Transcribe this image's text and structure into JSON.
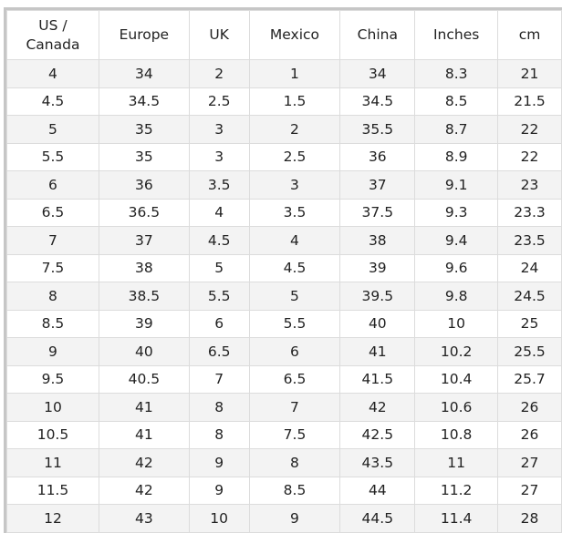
{
  "headers": [
    "US / Canada",
    "Europe",
    "UK",
    "Mexico",
    "China",
    "Inches",
    "cm"
  ],
  "rows": [
    [
      "4",
      "34",
      "2",
      "1",
      "34",
      "8.3",
      "21"
    ],
    [
      "4.5",
      "34.5",
      "2.5",
      "1.5",
      "34.5",
      "8.5",
      "21.5"
    ],
    [
      "5",
      "35",
      "3",
      "2",
      "35.5",
      "8.7",
      "22"
    ],
    [
      "5.5",
      "35",
      "3",
      "2.5",
      "36",
      "8.9",
      "22"
    ],
    [
      "6",
      "36",
      "3.5",
      "3",
      "37",
      "9.1",
      "23"
    ],
    [
      "6.5",
      "36.5",
      "4",
      "3.5",
      "37.5",
      "9.3",
      "23.3"
    ],
    [
      "7",
      "37",
      "4.5",
      "4",
      "38",
      "9.4",
      "23.5"
    ],
    [
      "7.5",
      "38",
      "5",
      "4.5",
      "39",
      "9.6",
      "24"
    ],
    [
      "8",
      "38.5",
      "5.5",
      "5",
      "39.5",
      "9.8",
      "24.5"
    ],
    [
      "8.5",
      "39",
      "6",
      "5.5",
      "40",
      "10",
      "25"
    ],
    [
      "9",
      "40",
      "6.5",
      "6",
      "41",
      "10.2",
      "25.5"
    ],
    [
      "9.5",
      "40.5",
      "7",
      "6.5",
      "41.5",
      "10.4",
      "25.7"
    ],
    [
      "10",
      "41",
      "8",
      "7",
      "42",
      "10.6",
      "26"
    ],
    [
      "10.5",
      "41",
      "8",
      "7.5",
      "42.5",
      "10.8",
      "26"
    ],
    [
      "11",
      "42",
      "9",
      "8",
      "43.5",
      "11",
      "27"
    ],
    [
      "11.5",
      "42",
      "9",
      "8.5",
      "44",
      "11.2",
      "27"
    ],
    [
      "12",
      "43",
      "10",
      "9",
      "44.5",
      "11.4",
      "28"
    ]
  ]
}
